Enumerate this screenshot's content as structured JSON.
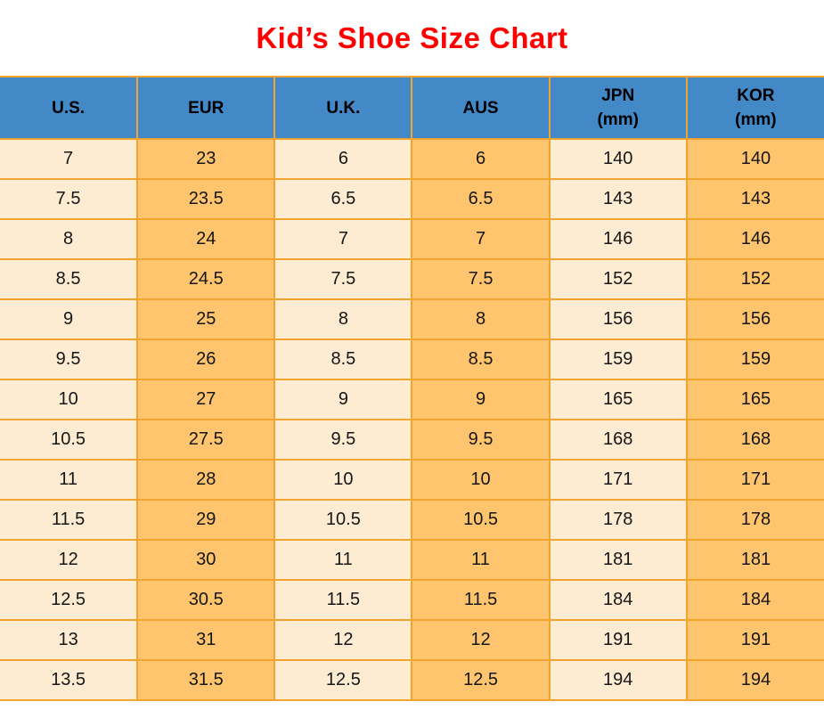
{
  "title": {
    "text": "Kid’s Shoe Size Chart",
    "color": "#ff0000"
  },
  "table": {
    "headers": [
      {
        "label": "U.S.",
        "sub": ""
      },
      {
        "label": "EUR",
        "sub": ""
      },
      {
        "label": "U.K.",
        "sub": ""
      },
      {
        "label": "AUS",
        "sub": ""
      },
      {
        "label": "JPN",
        "sub": "(mm)"
      },
      {
        "label": "KOR",
        "sub": "(mm)"
      }
    ],
    "colors": {
      "header_bg": "#4389c7",
      "col_light": "#fdecd2",
      "col_accent": "#ffc56e",
      "border": "#f2a52e",
      "header_text": "#000000",
      "cell_text": "#161616",
      "title_color": "#ff0000"
    }
  },
  "chart_data": {
    "type": "table",
    "title": "Kid’s Shoe Size Chart",
    "columns": [
      "U.S.",
      "EUR",
      "U.K.",
      "AUS",
      "JPN (mm)",
      "KOR (mm)"
    ],
    "rows": [
      [
        "7",
        "23",
        "6",
        "6",
        "140",
        "140"
      ],
      [
        "7.5",
        "23.5",
        "6.5",
        "6.5",
        "143",
        "143"
      ],
      [
        "8",
        "24",
        "7",
        "7",
        "146",
        "146"
      ],
      [
        "8.5",
        "24.5",
        "7.5",
        "7.5",
        "152",
        "152"
      ],
      [
        "9",
        "25",
        "8",
        "8",
        "156",
        "156"
      ],
      [
        "9.5",
        "26",
        "8.5",
        "8.5",
        "159",
        "159"
      ],
      [
        "10",
        "27",
        "9",
        "9",
        "165",
        "165"
      ],
      [
        "10.5",
        "27.5",
        "9.5",
        "9.5",
        "168",
        "168"
      ],
      [
        "11",
        "28",
        "10",
        "10",
        "171",
        "171"
      ],
      [
        "11.5",
        "29",
        "10.5",
        "10.5",
        "178",
        "178"
      ],
      [
        "12",
        "30",
        "11",
        "11",
        "181",
        "181"
      ],
      [
        "12.5",
        "30.5",
        "11.5",
        "11.5",
        "184",
        "184"
      ],
      [
        "13",
        "31",
        "12",
        "12",
        "191",
        "191"
      ],
      [
        "13.5",
        "31.5",
        "12.5",
        "12.5",
        "194",
        "194"
      ]
    ]
  }
}
